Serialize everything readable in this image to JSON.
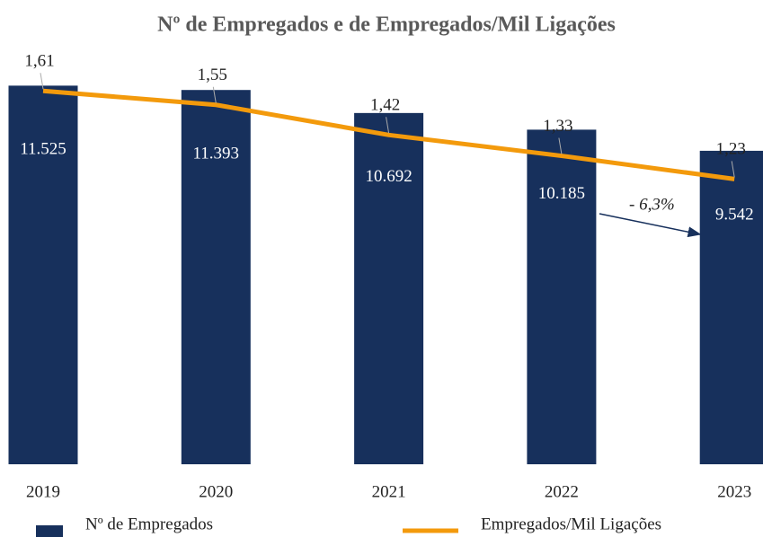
{
  "chart_data": {
    "type": "bar",
    "title": "Nº de Empregados e de Empregados/Mil Ligações",
    "categories": [
      "2019",
      "2020",
      "2021",
      "2022",
      "2023"
    ],
    "series": [
      {
        "name": "Nº de Empregados",
        "type": "bar",
        "color": "#17305c",
        "values": [
          11525,
          11393,
          10692,
          10185,
          9542
        ],
        "value_labels": [
          "11.525",
          "11.393",
          "10.692",
          "10.185",
          "9.542"
        ]
      },
      {
        "name": "Empregados/Mil Ligações",
        "type": "line",
        "axis": "y2",
        "color": "#f39a0c",
        "values": [
          1.61,
          1.55,
          1.42,
          1.33,
          1.23
        ],
        "value_labels": [
          "1,61",
          "1,55",
          "1,42",
          "1,33",
          "1,23"
        ]
      }
    ],
    "ylim": [
      0,
      12000
    ],
    "y2lim": [
      0,
      1.7
    ],
    "annotation": "- 6,3%"
  }
}
